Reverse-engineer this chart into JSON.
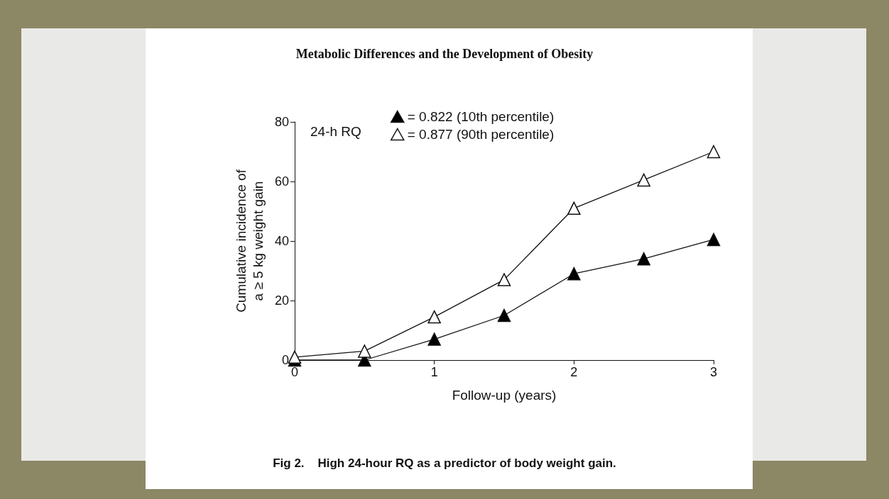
{
  "chart_data": {
    "type": "line",
    "title": "Metabolic Differences and the Development of Obesity",
    "xlabel": "Follow-up (years)",
    "ylabel": "Cumulative incidence of\na ≥ 5 kg weight gain",
    "legend_title": "24-h RQ",
    "annotations": [
      "Fig 2.    High 24-hour RQ as a predictor of body weight gain."
    ],
    "x": [
      0,
      0.5,
      1,
      1.5,
      2,
      2.5,
      3
    ],
    "series": [
      {
        "name": "= 0.822 (10th percentile)",
        "color": "#000000",
        "values": [
          0,
          0,
          7,
          15,
          29,
          34,
          40.5
        ]
      },
      {
        "name": "= 0.877 (90th percentile)",
        "color": "#ffffff",
        "values": [
          1,
          3,
          14.5,
          27,
          51,
          60.5,
          70
        ]
      }
    ],
    "xlim": [
      0,
      3
    ],
    "xticks": [
      0,
      1,
      2,
      3
    ],
    "ylim": [
      0,
      80
    ],
    "yticks": [
      0,
      20,
      40,
      60,
      80
    ],
    "grid": false,
    "legend": "top left",
    "marker": "triangle",
    "line_style": "solid"
  }
}
